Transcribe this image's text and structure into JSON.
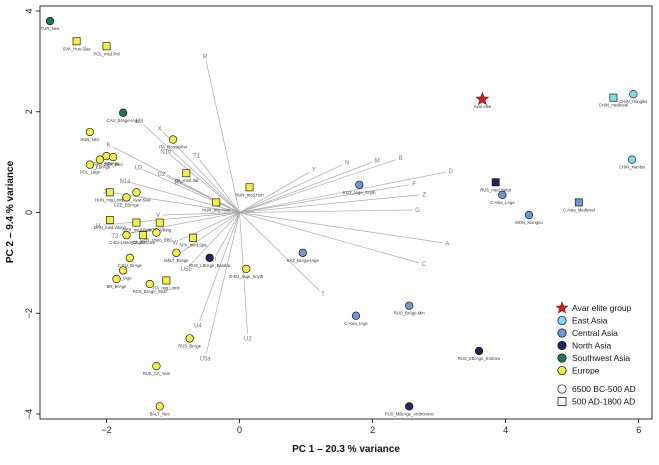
{
  "chart_data": {
    "type": "scatter",
    "xlabel": "PC 1 – 20.3 % variance",
    "ylabel": "PC 2 – 9.4 % variance",
    "xlim": [
      -3.0,
      6.2
    ],
    "ylim": [
      -4.1,
      4.1
    ],
    "xticks": [
      "−2",
      "0",
      "2",
      "4",
      "6"
    ],
    "xtick_values": [
      -2,
      0,
      2,
      4,
      6
    ],
    "yticks": [
      "−4",
      "−2",
      "0",
      "2",
      "4"
    ],
    "ytick_values": [
      -4,
      -2,
      0,
      2,
      4
    ],
    "colors": {
      "avar": "#cc1f1f",
      "East Asia": "#7fdcef",
      "Central Asia": "#6f97d8",
      "North Asia": "#23265e",
      "Southwest Asia": "#1f7a52",
      "Europe": "#f5ee45",
      "loading": "#aaaaaa"
    },
    "legend": {
      "position": "bottom-right",
      "items": [
        {
          "label": "Avar elite group",
          "symbol": "star",
          "color": "#cc1f1f"
        },
        {
          "label": "East Asia",
          "symbol": "circle",
          "color": "#7fdcef"
        },
        {
          "label": "Central Asia",
          "symbol": "circle",
          "color": "#6f97d8"
        },
        {
          "label": "North Asia",
          "symbol": "circle",
          "color": "#23265e"
        },
        {
          "label": "Southwest Asia",
          "symbol": "circle",
          "color": "#1f7a52"
        },
        {
          "label": "Europe",
          "symbol": "circle",
          "color": "#f5ee45"
        },
        {
          "label": "6500 BC-500 AD",
          "symbol": "circle",
          "color": "#ffffff"
        },
        {
          "label": "500 AD-1800 AD",
          "symbol": "square",
          "color": "#ffffff"
        }
      ]
    },
    "points": [
      {
        "label": "Avar elite",
        "x": 3.65,
        "y": 2.25,
        "group": "avar",
        "shape": "star"
      },
      {
        "label": "CHIN_Hongiko",
        "x": 5.92,
        "y": 2.35,
        "group": "East Asia",
        "shape": "circle"
      },
      {
        "label": "CHIN_medieval",
        "x": 5.62,
        "y": 2.28,
        "group": "East Asia",
        "shape": "square"
      },
      {
        "label": "CHIN_Xianbei",
        "x": 5.9,
        "y": 1.05,
        "group": "East Asia",
        "shape": "circle"
      },
      {
        "label": "KGT_IAge_Scyth",
        "x": 1.8,
        "y": 0.55,
        "group": "Central Asia",
        "shape": "circle"
      },
      {
        "label": "C-Asia_LAge",
        "x": 3.95,
        "y": 0.35,
        "group": "Central Asia",
        "shape": "circle"
      },
      {
        "label": "MON_Xiongnu",
        "x": 4.35,
        "y": -0.05,
        "group": "Central Asia",
        "shape": "circle"
      },
      {
        "label": "C-Asia_Medieval",
        "x": 5.1,
        "y": 0.2,
        "group": "Central Asia",
        "shape": "square"
      },
      {
        "label": "KAZ_BrAge-IAge",
        "x": 0.95,
        "y": -0.8,
        "group": "Central Asia",
        "shape": "circle"
      },
      {
        "label": "RUS_BrAge.Min",
        "x": 2.55,
        "y": -1.85,
        "group": "Central Asia",
        "shape": "circle"
      },
      {
        "label": "C-Asia_IAge",
        "x": 1.75,
        "y": -2.05,
        "group": "Central Asia",
        "shape": "circle"
      },
      {
        "label": "RUS_med.Yakut",
        "x": 3.85,
        "y": 0.6,
        "group": "North Asia",
        "shape": "square"
      },
      {
        "label": "RUS_LBrAge_Baraba",
        "x": -0.45,
        "y": -0.9,
        "group": "North Asia",
        "shape": "circle"
      },
      {
        "label": "RUS_EBrAge_Krotovo",
        "x": 3.6,
        "y": -2.75,
        "group": "North Asia",
        "shape": "circle"
      },
      {
        "label": "RUS_MBrAge_Andronovo",
        "x": 2.55,
        "y": -3.85,
        "group": "North Asia",
        "shape": "circle"
      },
      {
        "label": "TUR_Neo",
        "x": -2.85,
        "y": 3.8,
        "group": "Southwest Asia",
        "shape": "circle"
      },
      {
        "label": "CAU_BrAge-IAge",
        "x": -1.75,
        "y": 1.98,
        "group": "Southwest Asia",
        "shape": "circle"
      },
      {
        "label": "SVK_Hun-Slav",
        "x": -2.45,
        "y": 3.4,
        "group": "Europe",
        "shape": "square"
      },
      {
        "label": "POL_med.Pol",
        "x": -2.0,
        "y": 3.3,
        "group": "Europe",
        "shape": "square"
      },
      {
        "label": "HUN_Neo",
        "x": -2.25,
        "y": 1.6,
        "group": "Europe",
        "shape": "circle"
      },
      {
        "label": "ITA_RomanPer",
        "x": -1.0,
        "y": 1.45,
        "group": "Europe",
        "shape": "circle"
      },
      {
        "label": "GER_EBrAge",
        "x": -2.0,
        "y": 1.12,
        "group": "Europe",
        "shape": "circle"
      },
      {
        "label": "GER_Neo",
        "x": -1.9,
        "y": 1.1,
        "group": "Europe",
        "shape": "circle"
      },
      {
        "label": "IB_EBrAge",
        "x": -2.1,
        "y": 1.05,
        "group": "Europe",
        "shape": "circle"
      },
      {
        "label": "POL_Lage",
        "x": -2.25,
        "y": 0.95,
        "group": "Europe",
        "shape": "circle"
      },
      {
        "label": "ITA_med.Ital",
        "x": -0.8,
        "y": 0.78,
        "group": "Europe",
        "shape": "square"
      },
      {
        "label": "HUN_med.Hun",
        "x": 0.15,
        "y": 0.5,
        "group": "Europe",
        "shape": "square"
      },
      {
        "label": "HUN_mig.Lomb",
        "x": -1.95,
        "y": 0.4,
        "group": "Europe",
        "shape": "square"
      },
      {
        "label": "SVK_Avar-Slav",
        "x": -1.55,
        "y": 0.4,
        "group": "Europe",
        "shape": "circle"
      },
      {
        "label": "CZE_EBrAge",
        "x": -1.7,
        "y": 0.3,
        "group": "Europe",
        "shape": "circle"
      },
      {
        "label": "HUN_mig.Avar",
        "x": -0.35,
        "y": 0.2,
        "group": "Europe",
        "shape": "square"
      },
      {
        "label": "DAN_med.Viking",
        "x": -1.95,
        "y": -0.15,
        "group": "Europe",
        "shape": "square"
      },
      {
        "label": "GER_med.Bav",
        "x": -1.55,
        "y": -0.2,
        "group": "Europe",
        "shape": "square"
      },
      {
        "label": "NOR_Viking",
        "x": -1.2,
        "y": -0.2,
        "group": "Europe",
        "shape": "square"
      },
      {
        "label": "C-EU-LNeo_Chalc",
        "x": -1.7,
        "y": -0.45,
        "group": "Europe",
        "shape": "circle"
      },
      {
        "label": "ICE_med.Ice",
        "x": -1.45,
        "y": -0.45,
        "group": "Europe",
        "shape": "square"
      },
      {
        "label": "GER_LNeo_BBC",
        "x": -1.25,
        "y": -0.4,
        "group": "Europe",
        "shape": "circle"
      },
      {
        "label": "SPA_med.Spa",
        "x": -0.7,
        "y": -0.5,
        "group": "Europe",
        "shape": "square"
      },
      {
        "label": "BALT_BrAge",
        "x": -0.95,
        "y": -0.8,
        "group": "Europe",
        "shape": "circle"
      },
      {
        "label": "C-EU_BrAge",
        "x": -1.65,
        "y": -0.9,
        "group": "Europe",
        "shape": "circle"
      },
      {
        "label": "E-EU_IAge_Scyth",
        "x": 0.1,
        "y": -1.12,
        "group": "Europe",
        "shape": "circle"
      },
      {
        "label": "ITA_IAge",
        "x": -1.75,
        "y": -1.15,
        "group": "Europe",
        "shape": "circle"
      },
      {
        "label": "BR_BrAge",
        "x": -1.85,
        "y": -1.32,
        "group": "Europe",
        "shape": "circle"
      },
      {
        "label": "ITA_mig.Lomb",
        "x": -1.1,
        "y": -1.35,
        "group": "Europe",
        "shape": "square"
      },
      {
        "label": "RUS_BrAge_Srub",
        "x": -1.35,
        "y": -1.42,
        "group": "Europe",
        "shape": "circle"
      },
      {
        "label": "RUS_BrAge",
        "x": -0.75,
        "y": -2.5,
        "group": "Europe",
        "shape": "circle"
      },
      {
        "label": "RUS_CA_Yam",
        "x": -1.25,
        "y": -3.05,
        "group": "Europe",
        "shape": "circle"
      },
      {
        "label": "BALT_Neo",
        "x": -1.2,
        "y": -3.85,
        "group": "Europe",
        "shape": "circle"
      }
    ],
    "loadings": [
      {
        "label": "R",
        "x": -0.5,
        "y": 3.0
      },
      {
        "label": "X",
        "x": -1.15,
        "y": 1.6
      },
      {
        "label": "U8",
        "x": -1.45,
        "y": 1.75
      },
      {
        "label": "K",
        "x": -1.9,
        "y": 1.3
      },
      {
        "label": "N1b",
        "x": -1.05,
        "y": 1.15
      },
      {
        "label": "T1",
        "x": -0.6,
        "y": 1.05
      },
      {
        "label": "U3",
        "x": -1.45,
        "y": 0.85
      },
      {
        "label": "U2'",
        "x": -1.1,
        "y": 0.72
      },
      {
        "label": "N1a",
        "x": -1.65,
        "y": 0.6
      },
      {
        "label": "HV",
        "x": -0.85,
        "y": 0.55
      },
      {
        "label": "J",
        "x": -1.95,
        "y": 0.4
      },
      {
        "label": "V",
        "x": -1.15,
        "y": -0.05
      },
      {
        "label": "H",
        "x": -2.05,
        "y": -0.25
      },
      {
        "label": "T2",
        "x": -1.8,
        "y": -0.45
      },
      {
        "label": "W",
        "x": -0.9,
        "y": -0.55
      },
      {
        "label": "I",
        "x": -1.0,
        "y": -0.9
      },
      {
        "label": "U5b",
        "x": -0.75,
        "y": -1.05
      },
      {
        "label": "U",
        "x": -0.35,
        "y": -0.85
      },
      {
        "label": "U4",
        "x": -0.6,
        "y": -2.15
      },
      {
        "label": "U5a",
        "x": -0.5,
        "y": -2.8
      },
      {
        "label": "U2",
        "x": 0.12,
        "y": -2.4
      },
      {
        "label": "T",
        "x": 1.2,
        "y": -1.55
      },
      {
        "label": "C",
        "x": 2.7,
        "y": -1.0
      },
      {
        "label": "A",
        "x": 3.05,
        "y": -0.6
      },
      {
        "label": "G",
        "x": 2.6,
        "y": 0.05
      },
      {
        "label": "Z",
        "x": 2.7,
        "y": 0.35
      },
      {
        "label": "F",
        "x": 2.55,
        "y": 0.55
      },
      {
        "label": "D",
        "x": 3.1,
        "y": 0.8
      },
      {
        "label": "B",
        "x": 2.35,
        "y": 1.05
      },
      {
        "label": "M",
        "x": 2.0,
        "y": 1.0
      },
      {
        "label": "N",
        "x": 1.55,
        "y": 0.95
      },
      {
        "label": "Y",
        "x": 1.05,
        "y": 0.8
      }
    ]
  }
}
